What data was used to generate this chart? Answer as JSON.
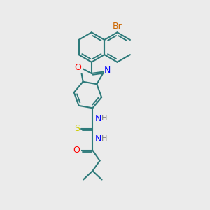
{
  "background_color": "#ebebeb",
  "bond_color": "#2d7a7a",
  "bond_width": 1.5,
  "atom_colors": {
    "Br": "#cc6600",
    "N": "#0000ff",
    "O": "#ff0000",
    "S": "#cccc00",
    "C": "#2d7a7a",
    "H": "#808080"
  },
  "font_size": 8,
  "fig_width": 3.0,
  "fig_height": 3.0,
  "dpi": 100
}
